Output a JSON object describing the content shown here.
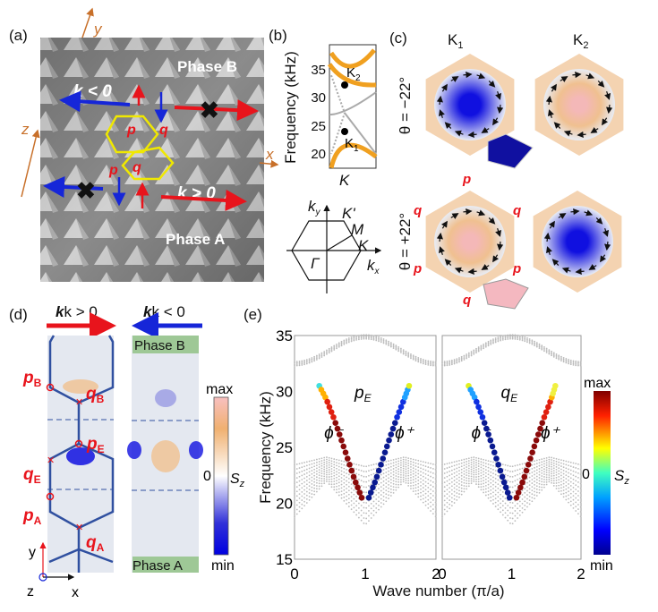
{
  "panel_a": {
    "label": "(a)",
    "axis_x": "x",
    "axis_y": "y",
    "axis_z": "z",
    "phase_b": "Phase B",
    "phase_a": "Phase A",
    "k_neg": "k < 0",
    "k_pos": "k > 0",
    "site_p": "p",
    "site_q": "q",
    "colors": {
      "hexagon": "#f0e800",
      "forward": "#e8141c",
      "backward": "#1626d8",
      "axes": "#c8702a"
    }
  },
  "panel_b": {
    "label": "(b)",
    "ylabel": "Frequency (kHz)",
    "yticks": [
      "35",
      "30",
      "25",
      "20"
    ],
    "xtick": "K",
    "k1": "K",
    "k1_sub": "1",
    "k2": "K",
    "k2_sub": "2",
    "bz": {
      "ky": "k",
      "ky_sub": "y",
      "kx": "k",
      "kx_sub": "x",
      "kprime": "K'",
      "m": "M",
      "k": "K",
      "gamma": "Γ"
    },
    "colors": {
      "band": "#f0a020",
      "other": "#aaaaaa"
    }
  },
  "panel_c": {
    "label": "(c)",
    "col1": "K",
    "col1_sub": "1",
    "col2": "K",
    "col2_sub": "2",
    "row1": "θ = −22°",
    "row2": "θ = +22°",
    "p": "p",
    "q": "q"
  },
  "panel_d": {
    "label": "(d)",
    "k_pos": "k > 0",
    "k_neg": "k < 0",
    "phase_b": "Phase B",
    "phase_a": "Phase A",
    "pB": "p",
    "pB_sub": "B",
    "qB": "q",
    "qB_sub": "B",
    "pE": "p",
    "pE_sub": "E",
    "qE": "q",
    "qE_sub": "E",
    "pA": "p",
    "pA_sub": "A",
    "qA": "q",
    "qA_sub": "A",
    "axis_y": "y",
    "axis_x": "x",
    "axis_z": "z",
    "cbar_max": "max",
    "cbar_zero": "0",
    "cbar_min": "min",
    "cbar_label": "S",
    "cbar_label_sub": "z"
  },
  "chart_data": {
    "type": "scatter",
    "label": "(e)",
    "xlabel": "Wave number (π/a)",
    "ylabel": "Frequency (kHz)",
    "xlim": [
      0,
      2
    ],
    "ylim": [
      15,
      35
    ],
    "xticks": [
      "0",
      "1",
      "2"
    ],
    "yticks": [
      "35",
      "30",
      "25",
      "20",
      "15"
    ],
    "colorbar": {
      "label": "S",
      "label_sub": "z",
      "max": "max",
      "zero": "0",
      "min": "min"
    },
    "panels": [
      {
        "title": "p",
        "title_sub": "E",
        "series": [
          {
            "name": "ϕ⁻",
            "x": [
              0.35,
              0.45,
              0.55,
              0.65,
              0.75,
              0.85,
              0.95
            ],
            "y": [
              30.5,
              29.3,
              27.7,
              25.9,
              24.0,
              22.1,
              20.5
            ],
            "sz_sign": "positive"
          },
          {
            "name": "ϕ⁺",
            "x": [
              1.05,
              1.15,
              1.25,
              1.35,
              1.45,
              1.55,
              1.62
            ],
            "y": [
              20.5,
              22.1,
              24.0,
              25.9,
              27.7,
              29.3,
              30.5
            ],
            "sz_sign": "negative"
          }
        ]
      },
      {
        "title": "q",
        "title_sub": "E",
        "series": [
          {
            "name": "ϕ⁻",
            "x": [
              0.38,
              0.48,
              0.58,
              0.68,
              0.78,
              0.88,
              0.97
            ],
            "y": [
              30.5,
              29.3,
              27.7,
              25.9,
              24.0,
              22.1,
              20.5
            ],
            "sz_sign": "negative"
          },
          {
            "name": "ϕ⁺",
            "x": [
              1.07,
              1.17,
              1.27,
              1.37,
              1.47,
              1.57,
              1.63
            ],
            "y": [
              20.5,
              22.1,
              24.0,
              25.9,
              27.7,
              29.3,
              30.5
            ],
            "sz_sign": "positive"
          }
        ]
      }
    ]
  }
}
